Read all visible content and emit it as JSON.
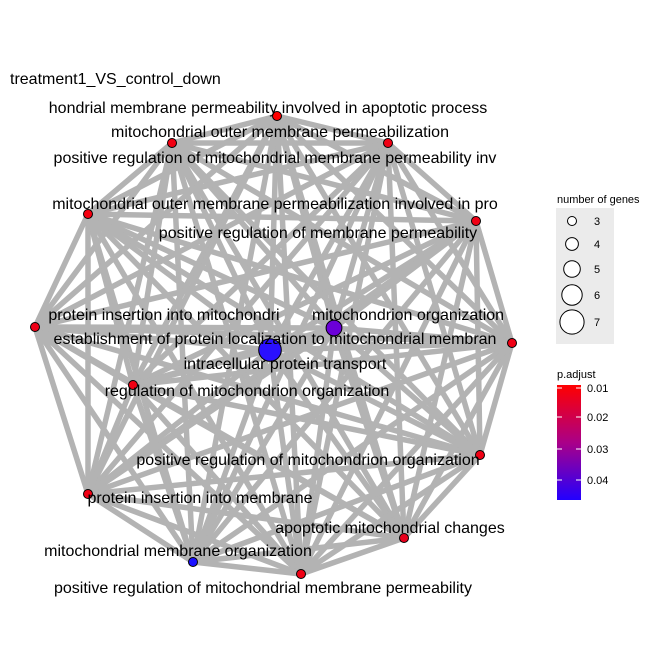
{
  "title": "treatment1_VS_control_down",
  "nodes": [
    {
      "label": "hondrial membrane permeability involved in apoptotic process",
      "size": 3,
      "padj": 0.01,
      "color": "#ff0000"
    },
    {
      "label": "mitochondrial outer membrane permeabilization",
      "size": 3,
      "padj": 0.01,
      "color": "#f20012"
    },
    {
      "label": "positive regulation of mitochondrial membrane permeability inv",
      "size": 3,
      "padj": 0.01,
      "color": "#f00014"
    },
    {
      "label": "mitochondrial outer membrane permeabilization involved in pro",
      "size": 3,
      "padj": 0.01,
      "color": "#f50010"
    },
    {
      "label": "positive regulation of membrane permeability",
      "size": 3,
      "padj": 0.01,
      "color": "#f00014"
    },
    {
      "label": "protein insertion into mitochondri",
      "size": 3,
      "padj": 0.01,
      "color": "#ee0016"
    },
    {
      "label": "mitochondrion organization",
      "size": 5,
      "padj": 0.035,
      "color": "#6b00d8"
    },
    {
      "label": "establishment of protein localization to mitochondrial membran",
      "size": 3,
      "padj": 0.01,
      "color": "#f00014"
    },
    {
      "label": "intracellular protein transport",
      "size": 7,
      "padj": 0.045,
      "color": "#2a10ff"
    },
    {
      "label": "regulation of mitochondrion organization",
      "size": 3,
      "padj": 0.01,
      "color": "#f00014"
    },
    {
      "label": "positive regulation of mitochondrion organization",
      "size": 3,
      "padj": 0.01,
      "color": "#f00014"
    },
    {
      "label": "protein insertion into membrane",
      "size": 3,
      "padj": 0.01,
      "color": "#f00014"
    },
    {
      "label": "apoptotic mitochondrial changes",
      "size": 3,
      "padj": 0.012,
      "color": "#e8001c"
    },
    {
      "label": "mitochondrial membrane organization",
      "size": 3,
      "padj": 0.045,
      "color": "#1a10ff"
    },
    {
      "label": "positive regulation of mitochondrial membrane permeability",
      "size": 3,
      "padj": 0.01,
      "color": "#f00014"
    }
  ],
  "legend": {
    "size_title": "number of genes",
    "size_items": [
      "3",
      "4",
      "5",
      "6",
      "7"
    ],
    "color_title": "p.adjust",
    "color_ticks": [
      "0.01",
      "0.02",
      "0.03",
      "0.04"
    ],
    "color_high": "#ff0000",
    "color_low": "#2200ff"
  }
}
